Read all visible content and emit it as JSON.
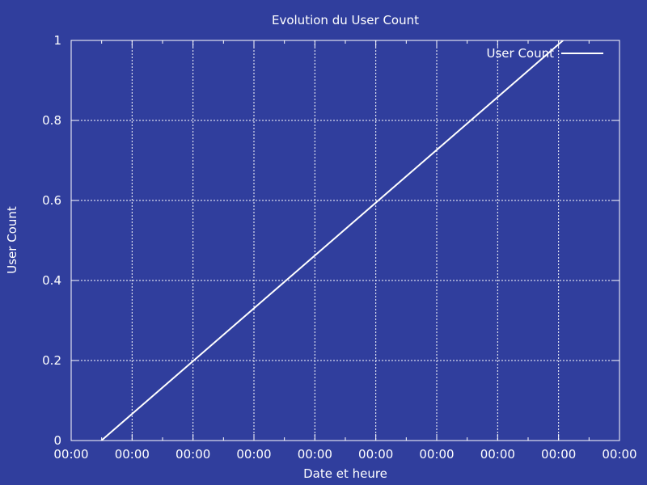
{
  "chart_data": {
    "type": "line",
    "title": "Evolution du User Count",
    "xlabel": "Date et heure",
    "ylabel": "User Count",
    "x_tick_labels": [
      "00:00",
      "00:00",
      "00:00",
      "00:00",
      "00:00",
      "00:00",
      "00:00",
      "00:00",
      "00:00",
      "00:00"
    ],
    "x_tick_count": 10,
    "y_ticks": [
      0,
      0.2,
      0.4,
      0.6,
      0.8,
      1
    ],
    "y_tick_labels": [
      "0",
      "0.2",
      "0.4",
      "0.6",
      "0.8",
      "1"
    ],
    "ylim": [
      0,
      1
    ],
    "grid": true,
    "legend_position": "top-right",
    "series": [
      {
        "name": "User Count",
        "color": "#ffffff",
        "x_fraction": [
          0.055,
          0.897
        ],
        "values": [
          0,
          1
        ]
      }
    ],
    "colors": {
      "background": "#303e9d",
      "foreground": "#ffffff"
    }
  }
}
